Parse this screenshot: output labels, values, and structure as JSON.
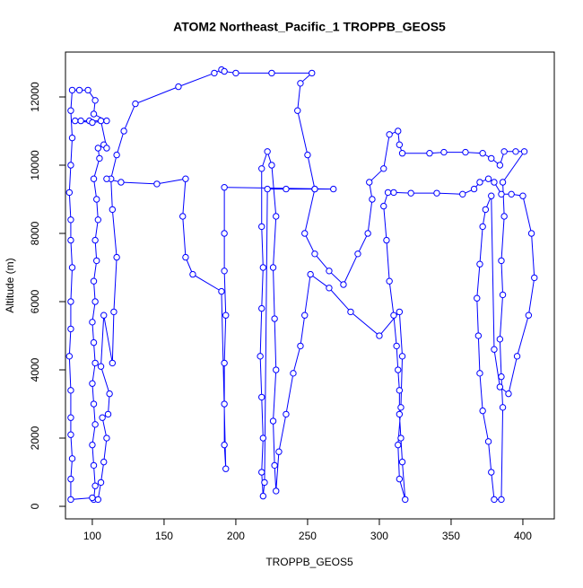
{
  "chart_data": {
    "type": "line",
    "title": "ATOM2 Northeast_Pacific_1 TROPPB_GEOS5",
    "x_label": "TROPPB_GEOS5",
    "y_label": "Altitude (m)",
    "color": "#0000ff",
    "markers": "open-circle",
    "xlim": [
      81.3,
      421.9
    ],
    "ylim": [
      -368,
      13316
    ],
    "xticks": [
      100,
      150,
      200,
      250,
      300,
      350,
      400
    ],
    "yticks": [
      0,
      2000,
      4000,
      6000,
      8000,
      10000,
      12000
    ],
    "x": [
      101,
      102,
      101,
      100,
      102,
      101,
      100,
      102,
      101,
      100,
      102,
      101,
      103,
      102,
      104,
      103,
      101,
      105,
      104,
      108,
      110,
      106,
      98,
      92,
      88,
      100,
      110,
      101,
      102,
      97,
      91,
      86,
      85,
      86,
      85,
      84,
      85,
      85,
      86,
      85,
      85,
      84,
      85,
      85,
      85,
      86,
      85,
      85,
      100,
      104,
      106,
      108,
      110,
      107,
      111,
      112,
      106,
      108,
      114,
      115,
      117,
      114,
      113,
      117,
      122,
      130,
      160,
      185,
      190,
      192,
      200,
      225,
      253,
      245,
      243,
      250,
      255,
      248,
      255,
      265,
      275,
      285,
      292,
      295,
      293,
      303,
      307,
      313,
      314,
      316,
      335,
      345,
      360,
      372,
      378,
      384,
      387,
      395,
      401,
      386,
      387,
      385,
      386,
      384,
      385,
      386,
      385,
      380,
      378,
      376,
      372,
      370,
      369,
      368,
      370,
      372,
      374,
      378,
      380,
      384,
      390,
      396,
      404,
      408,
      406,
      400,
      392,
      385,
      380,
      376,
      370,
      366,
      358,
      340,
      322,
      310,
      306,
      303,
      305,
      307,
      310,
      312,
      313,
      314,
      314,
      315,
      316,
      318,
      314,
      313,
      315,
      316,
      314,
      300,
      280,
      265,
      252,
      248,
      245,
      240,
      235,
      230,
      228,
      227,
      226,
      228,
      227,
      226,
      228,
      225,
      222,
      218,
      218,
      219,
      218,
      217,
      218,
      219,
      218,
      219,
      220,
      222,
      235,
      255,
      268,
      192,
      192,
      192,
      193,
      192,
      192,
      192,
      193,
      190,
      170,
      165,
      163,
      165,
      145,
      120,
      110
    ],
    "values": [
      200,
      600,
      1200,
      1800,
      2400,
      3000,
      3600,
      4200,
      4800,
      5400,
      6000,
      6600,
      7200,
      7800,
      8400,
      9000,
      9600,
      10200,
      10500,
      10600,
      10500,
      11300,
      11300,
      11300,
      11300,
      11250,
      11300,
      11500,
      11900,
      12200,
      12200,
      12200,
      11600,
      10800,
      10000,
      9200,
      8400,
      7800,
      7000,
      6000,
      5200,
      4400,
      3400,
      2600,
      2100,
      1400,
      800,
      200,
      250,
      200,
      700,
      1300,
      2000,
      2600,
      2700,
      3300,
      4100,
      5600,
      4200,
      5700,
      7300,
      8700,
      9600,
      10300,
      11000,
      11800,
      12300,
      12700,
      12800,
      12750,
      12700,
      12700,
      12700,
      12400,
      11600,
      10300,
      9300,
      8000,
      7400,
      6900,
      6500,
      7400,
      8000,
      9000,
      9500,
      9900,
      10900,
      11000,
      10600,
      10350,
      10350,
      10380,
      10380,
      10350,
      10200,
      10000,
      10400,
      10400,
      10400,
      9500,
      8500,
      7200,
      6200,
      4900,
      3800,
      2900,
      200,
      200,
      1000,
      1900,
      2800,
      3900,
      5000,
      6100,
      7100,
      8200,
      8700,
      9100,
      4600,
      3500,
      3300,
      4400,
      5600,
      6700,
      8000,
      9100,
      9150,
      9150,
      9500,
      9600,
      9500,
      9300,
      9150,
      9180,
      9180,
      9200,
      9200,
      8800,
      7800,
      6600,
      5600,
      4700,
      4000,
      3400,
      2700,
      2000,
      1300,
      200,
      800,
      1800,
      2900,
      4400,
      5700,
      5000,
      5700,
      6400,
      6800,
      5600,
      4700,
      3900,
      2700,
      1600,
      450,
      1200,
      2500,
      4000,
      5500,
      7000,
      8500,
      10000,
      10400,
      9900,
      8200,
      7000,
      5800,
      4400,
      3200,
      2000,
      1000,
      300,
      700,
      9300,
      9300,
      9300,
      9300,
      9350,
      8000,
      6900,
      5600,
      4200,
      3000,
      1800,
      1100,
      6300,
      6800,
      7300,
      8500,
      9600,
      9450,
      9500,
      9600
    ]
  }
}
